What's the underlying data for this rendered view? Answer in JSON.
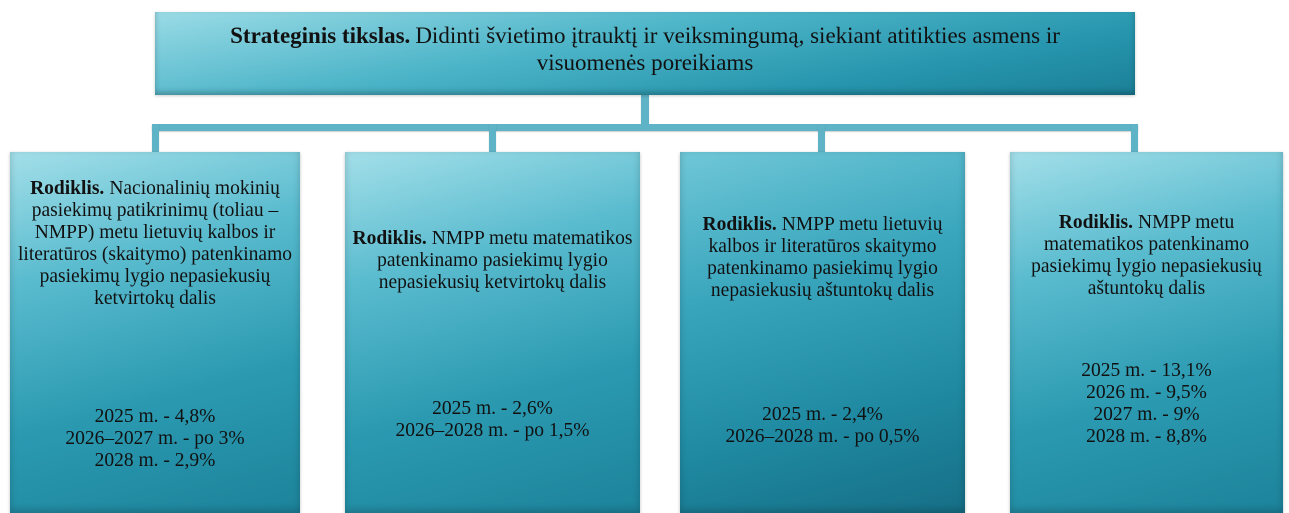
{
  "goal": {
    "label": "Strateginis tikslas.",
    "text": "Didinti švietimo įtrauktį ir veiksmingumą, siekiant atitikties asmens ir visuomenės poreikiams"
  },
  "indicators": [
    {
      "label": "Rodiklis.",
      "text": "Nacionalinių mokinių pasiekimų patikrinimų (toliau – NMPP) metu lietuvių kalbos ir literatūros (skaitymo) patenkinamo pasiekimų lygio nepasiekusių ketvirtokų dalis",
      "targets": [
        "2025 m. - 4,8%",
        "2026–2027 m. - po 3%",
        "2028 m. - 2,9%"
      ]
    },
    {
      "label": "Rodiklis.",
      "text": "NMPP metu matematikos patenkinamo pasiekimų lygio nepasiekusių ketvirtokų dalis",
      "targets": [
        "2025 m. - 2,6%",
        "2026–2028 m. - po 1,5%"
      ]
    },
    {
      "label": "Rodiklis.",
      "text": "NMPP metu lietuvių kalbos ir literatūros skaitymo patenkinamo pasiekimų lygio nepasiekusių aštuntokų dalis",
      "targets": [
        "2025 m. - 2,4%",
        "2026–2028 m. - po 0,5%"
      ]
    },
    {
      "label": "Rodiklis.",
      "text": "NMPP metu matematikos patenkinamo pasiekimų lygio nepasiekusių aštuntokų dalis",
      "targets": [
        "2025 m. - 13,1%",
        "2026 m. - 9,5%",
        "2027 m. - 9%",
        "2028 m. - 8,8%"
      ]
    }
  ]
}
